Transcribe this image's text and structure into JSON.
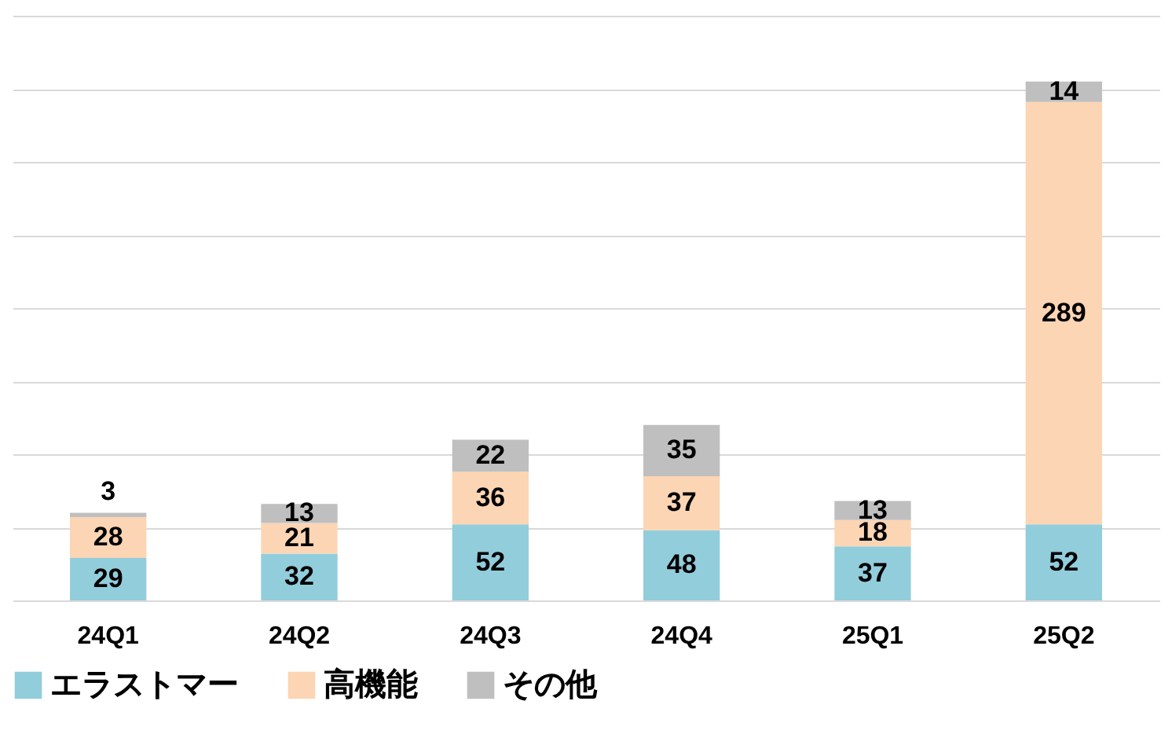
{
  "chart_data": {
    "type": "bar",
    "stacked": true,
    "categories": [
      "24Q1",
      "24Q2",
      "24Q3",
      "24Q4",
      "25Q1",
      "25Q2"
    ],
    "series": [
      {
        "name": "エラストマー",
        "color": "#92cddc",
        "values": [
          29,
          32,
          52,
          48,
          37,
          52
        ]
      },
      {
        "name": "高機能",
        "color": "#fcd5b4",
        "values": [
          28,
          21,
          36,
          37,
          18,
          289
        ]
      },
      {
        "name": "その他",
        "color": "#bfbfbf",
        "values": [
          3,
          13,
          22,
          35,
          13,
          14
        ]
      }
    ],
    "ylim": [
      0,
      400
    ],
    "yticks": [
      {
        "value": 0,
        "label": null
      },
      {
        "value": 50,
        "label": null
      },
      {
        "value": 100,
        "label": null
      },
      {
        "value": 150,
        "label": null
      },
      {
        "value": 200,
        "label": null
      },
      {
        "value": 250,
        "label": null
      },
      {
        "value": 300,
        "label": null
      },
      {
        "value": 350,
        "label": null
      },
      {
        "value": 400,
        "label": null
      }
    ],
    "grid": "y",
    "data_labels": true,
    "legend": "bottom"
  }
}
